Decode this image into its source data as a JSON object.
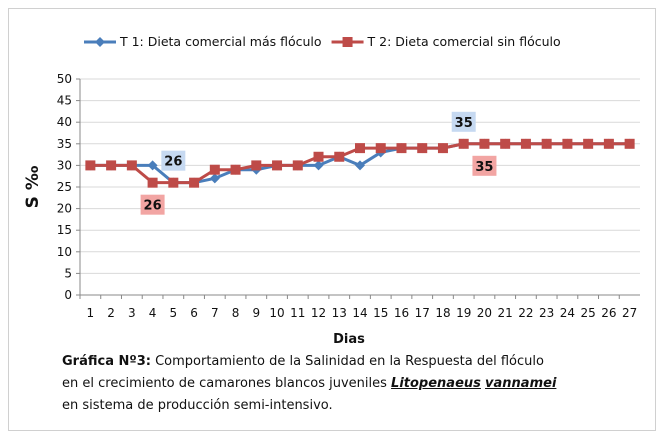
{
  "chart_data": {
    "type": "line",
    "categories": [
      1,
      2,
      3,
      4,
      5,
      6,
      7,
      8,
      9,
      10,
      11,
      12,
      13,
      14,
      15,
      16,
      17,
      18,
      19,
      20,
      21,
      22,
      23,
      24,
      25,
      26,
      27
    ],
    "series": [
      {
        "name": "T 1: Dieta comercial  más flóculo",
        "color": "#4a7ebb",
        "marker": "diamond",
        "values": [
          30,
          30,
          30,
          30,
          26,
          26,
          27,
          29,
          29,
          30,
          30,
          30,
          32,
          30,
          33,
          34,
          34,
          34,
          35,
          35,
          35,
          35,
          35,
          35,
          35,
          35,
          35
        ],
        "value_labels": [
          null,
          null,
          null,
          null,
          "26",
          null,
          null,
          null,
          null,
          null,
          null,
          null,
          null,
          null,
          null,
          null,
          null,
          null,
          "35",
          null,
          null,
          null,
          null,
          null,
          null,
          null,
          null
        ],
        "label_color": "#c6d9f1"
      },
      {
        "name": "T 2: Dieta comercial sin flóculo",
        "color": "#be4b48",
        "marker": "square",
        "values": [
          30,
          30,
          30,
          26,
          26,
          26,
          29,
          29,
          30,
          30,
          30,
          32,
          32,
          34,
          34,
          34,
          34,
          34,
          35,
          35,
          35,
          35,
          35,
          35,
          35,
          35,
          35
        ],
        "value_labels": [
          null,
          null,
          null,
          "26",
          null,
          null,
          null,
          null,
          null,
          null,
          null,
          null,
          null,
          null,
          null,
          null,
          null,
          null,
          null,
          "35",
          null,
          null,
          null,
          null,
          null,
          null,
          null
        ],
        "label_color": "#f2a5a3"
      }
    ],
    "ylim": [
      0,
      50
    ],
    "yticks": [
      0,
      5,
      10,
      15,
      20,
      25,
      30,
      35,
      40,
      45,
      50
    ],
    "grid": true,
    "y_label": "S ‰",
    "x_label": "Dias",
    "legend": "top"
  },
  "caption": {
    "lines": [
      [
        "Gráfica Nº3:",
        " Comportamiento de la Salinidad  en la Respuesta  del  flóculo"
      ],
      [
        "en el crecimiento de camarones blancos  juveniles ",
        "Litopenaeus",
        " ",
        "vannamei"
      ],
      [
        "en sistema de producción semi-intensivo."
      ]
    ]
  }
}
